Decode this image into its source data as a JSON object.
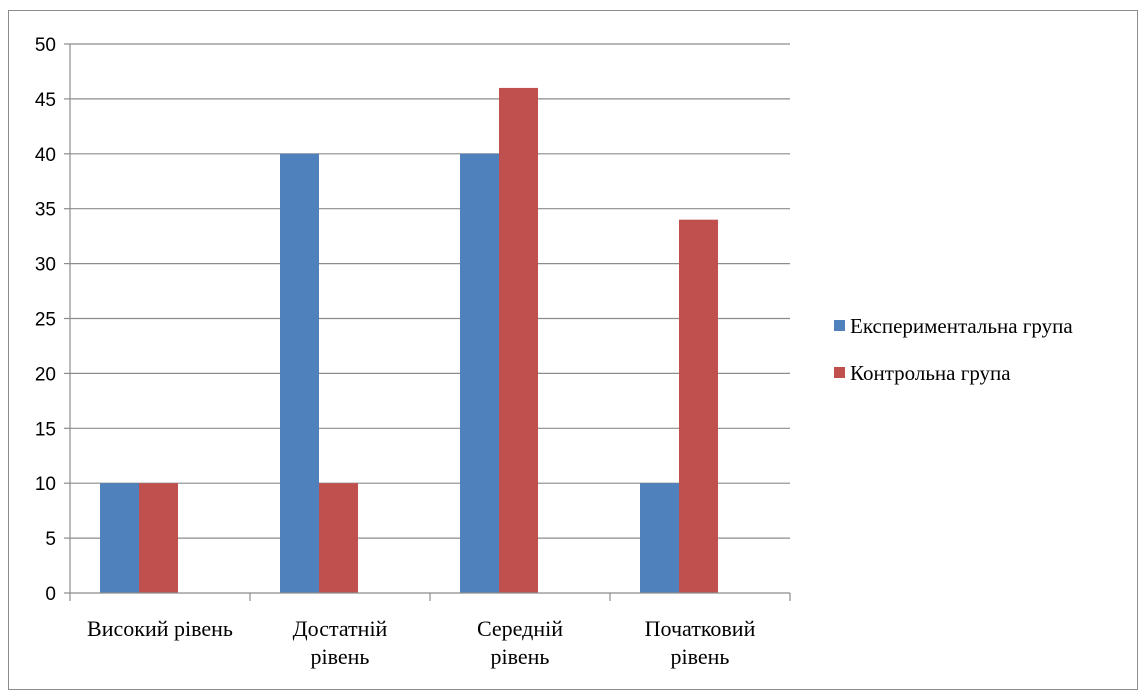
{
  "chart_data": {
    "type": "bar",
    "categories": [
      "Високий рівень",
      "Достатній рівень",
      "Середній рівень",
      "Початковий рівень"
    ],
    "category_lines": [
      [
        "Високий рівень"
      ],
      [
        "Достатній",
        "рівень"
      ],
      [
        "Середній",
        "рівень"
      ],
      [
        "Початковий",
        "рівень"
      ]
    ],
    "series": [
      {
        "name": "Експериментальна група",
        "values": [
          10,
          40,
          40,
          10
        ],
        "color": "#4f81bd"
      },
      {
        "name": "Контрольна група",
        "values": [
          10,
          10,
          46,
          34
        ],
        "color": "#c0504d"
      }
    ],
    "title": "",
    "xlabel": "",
    "ylabel": "",
    "ylim": [
      0,
      50
    ],
    "yticks": [
      0,
      5,
      10,
      15,
      20,
      25,
      30,
      35,
      40,
      45,
      50
    ],
    "grid": true,
    "legend_position": "right"
  }
}
